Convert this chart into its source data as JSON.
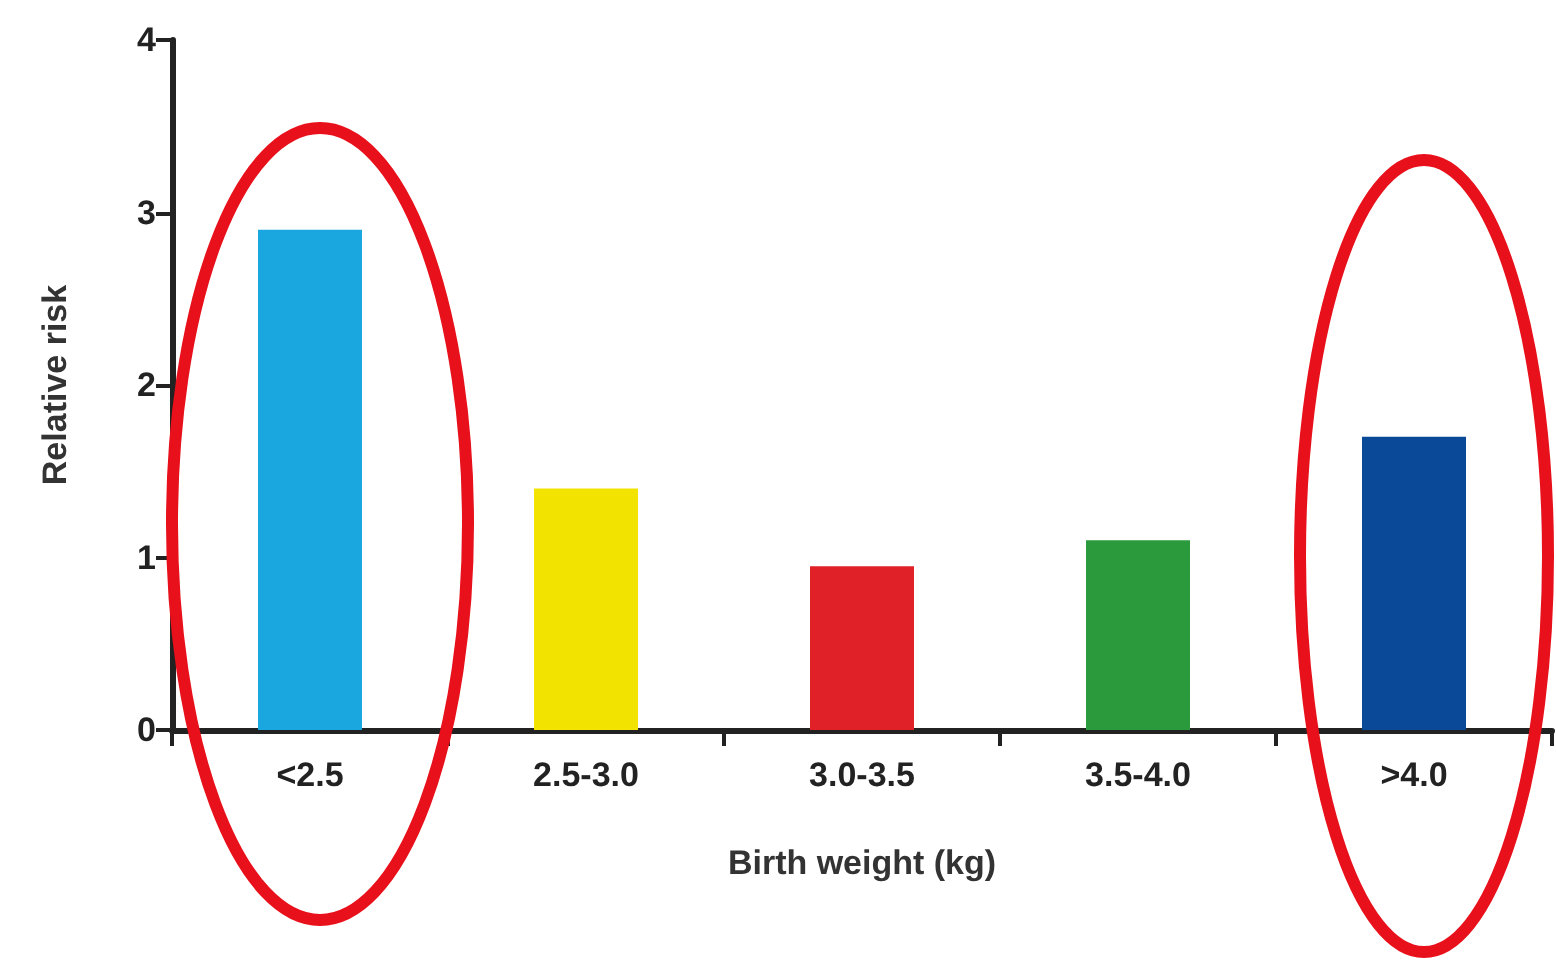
{
  "chart_data": {
    "type": "bar",
    "xlabel": "Birth weight (kg)",
    "ylabel": "Relative risk",
    "categories": [
      "<2.5",
      "2.5-3.0",
      "3.0-3.5",
      "3.5-4.0",
      ">4.0"
    ],
    "values": [
      2.9,
      1.4,
      0.95,
      1.1,
      1.7
    ],
    "colors": [
      "#1aa7e0",
      "#f2e400",
      "#e02228",
      "#2a9a3c",
      "#0a4898"
    ],
    "ylim": [
      0,
      4
    ],
    "yticks": [
      0,
      1,
      2,
      3,
      4
    ],
    "grid": false
  }
}
